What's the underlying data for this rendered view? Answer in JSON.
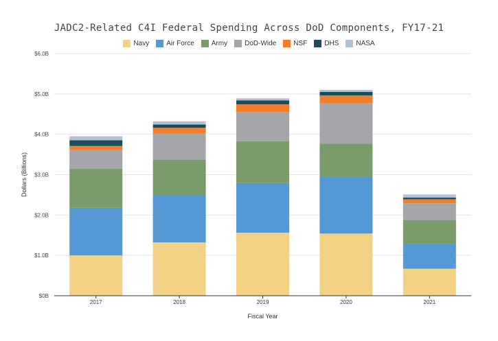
{
  "chart_data": {
    "type": "bar",
    "stacked": true,
    "title": "JADC2-Related C4I Federal Spending Across DoD Components, FY17-21",
    "xlabel": "Fiscal Year",
    "ylabel": "Dollars (Billions)",
    "categories": [
      "2017",
      "2018",
      "2019",
      "2020",
      "2021"
    ],
    "ylim": [
      0,
      6
    ],
    "yticks": [
      0,
      1,
      2,
      3,
      4,
      5,
      6
    ],
    "ytick_labels": [
      "$0B",
      "$1.0B",
      "$2.0B",
      "$3.0B",
      "$4.0B",
      "$5.0B",
      "$6.0B"
    ],
    "grid": true,
    "legend_position": "top-center",
    "series": [
      {
        "name": "Navy",
        "color": "#f2d285",
        "values": [
          1.0,
          1.32,
          1.56,
          1.54,
          0.67
        ]
      },
      {
        "name": "Air Force",
        "color": "#5598d6",
        "values": [
          1.18,
          1.17,
          1.23,
          1.41,
          0.62
        ]
      },
      {
        "name": "Army",
        "color": "#7a9b6a",
        "values": [
          0.97,
          0.88,
          1.04,
          0.82,
          0.58
        ]
      },
      {
        "name": "DoD-Wide",
        "color": "#a4a6a9",
        "values": [
          0.46,
          0.65,
          0.72,
          1.0,
          0.42
        ]
      },
      {
        "name": "NSF",
        "color": "#f47d2a",
        "values": [
          0.1,
          0.14,
          0.19,
          0.19,
          0.1
        ]
      },
      {
        "name": "DHS",
        "color": "#1c4e5a",
        "values": [
          0.14,
          0.08,
          0.1,
          0.09,
          0.04
        ]
      },
      {
        "name": "NASA",
        "color": "#b4bfd8",
        "values": [
          0.1,
          0.08,
          0.05,
          0.05,
          0.08
        ]
      }
    ]
  }
}
